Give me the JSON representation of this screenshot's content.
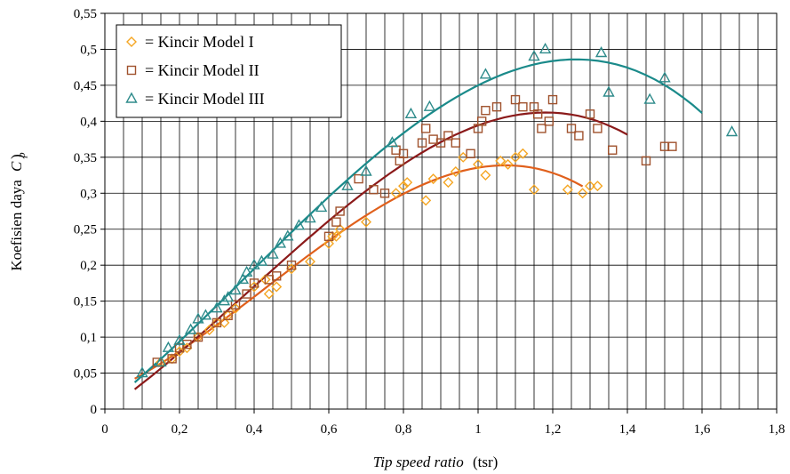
{
  "chart_data": {
    "type": "scatter",
    "title": "",
    "xlabel_italic": "Tip speed ratio",
    "xlabel_suffix": "(tsr)",
    "ylabel_prefix": "Koefisien daya",
    "ylabel_symbol": "C",
    "ylabel_sub": "p",
    "xlim": [
      0,
      1.8
    ],
    "ylim": [
      0,
      0.55
    ],
    "x_ticks": [
      "0",
      "0,2",
      "0,4",
      "0,6",
      "0,8",
      "1",
      "1,2",
      "1,4",
      "1,6",
      "1,8"
    ],
    "y_ticks": [
      "0",
      "0,05",
      "0,1",
      "0,15",
      "0,2",
      "0,25",
      "0,3",
      "0,35",
      "0,4",
      "0,45",
      "0,5",
      "0,55"
    ],
    "grid": true,
    "legend_position": "top-left",
    "series": [
      {
        "name": "= Kincir Model I",
        "marker": "diamond",
        "color": "#F5A623",
        "trend_color": "#E0601C",
        "points": [
          [
            0.15,
            0.065
          ],
          [
            0.18,
            0.07
          ],
          [
            0.2,
            0.08
          ],
          [
            0.22,
            0.085
          ],
          [
            0.25,
            0.1
          ],
          [
            0.28,
            0.11
          ],
          [
            0.3,
            0.12
          ],
          [
            0.32,
            0.12
          ],
          [
            0.33,
            0.13
          ],
          [
            0.35,
            0.14
          ],
          [
            0.4,
            0.17
          ],
          [
            0.43,
            0.18
          ],
          [
            0.44,
            0.16
          ],
          [
            0.46,
            0.17
          ],
          [
            0.5,
            0.195
          ],
          [
            0.55,
            0.205
          ],
          [
            0.6,
            0.23
          ],
          [
            0.61,
            0.24
          ],
          [
            0.62,
            0.24
          ],
          [
            0.63,
            0.25
          ],
          [
            0.7,
            0.26
          ],
          [
            0.78,
            0.3
          ],
          [
            0.8,
            0.31
          ],
          [
            0.81,
            0.315
          ],
          [
            0.86,
            0.29
          ],
          [
            0.88,
            0.32
          ],
          [
            0.92,
            0.315
          ],
          [
            0.94,
            0.33
          ],
          [
            0.96,
            0.35
          ],
          [
            1.0,
            0.34
          ],
          [
            1.02,
            0.325
          ],
          [
            1.06,
            0.345
          ],
          [
            1.08,
            0.34
          ],
          [
            1.1,
            0.35
          ],
          [
            1.12,
            0.355
          ],
          [
            1.15,
            0.305
          ],
          [
            1.24,
            0.305
          ],
          [
            1.28,
            0.3
          ],
          [
            1.3,
            0.31
          ],
          [
            1.32,
            0.31
          ]
        ],
        "trend_x": [
          0.08,
          1.28
        ]
      },
      {
        "name": "= Kincir Model II",
        "marker": "square",
        "color": "#A0522D",
        "trend_color": "#8B1A1A",
        "points": [
          [
            0.14,
            0.065
          ],
          [
            0.18,
            0.07
          ],
          [
            0.2,
            0.085
          ],
          [
            0.22,
            0.09
          ],
          [
            0.25,
            0.1
          ],
          [
            0.3,
            0.12
          ],
          [
            0.33,
            0.13
          ],
          [
            0.35,
            0.145
          ],
          [
            0.38,
            0.16
          ],
          [
            0.4,
            0.175
          ],
          [
            0.44,
            0.18
          ],
          [
            0.46,
            0.185
          ],
          [
            0.5,
            0.2
          ],
          [
            0.6,
            0.24
          ],
          [
            0.62,
            0.26
          ],
          [
            0.63,
            0.275
          ],
          [
            0.68,
            0.32
          ],
          [
            0.72,
            0.305
          ],
          [
            0.75,
            0.3
          ],
          [
            0.78,
            0.36
          ],
          [
            0.79,
            0.345
          ],
          [
            0.8,
            0.355
          ],
          [
            0.85,
            0.37
          ],
          [
            0.86,
            0.39
          ],
          [
            0.88,
            0.375
          ],
          [
            0.9,
            0.37
          ],
          [
            0.92,
            0.38
          ],
          [
            0.94,
            0.37
          ],
          [
            0.98,
            0.355
          ],
          [
            1.0,
            0.39
          ],
          [
            1.01,
            0.4
          ],
          [
            1.02,
            0.415
          ],
          [
            1.05,
            0.42
          ],
          [
            1.1,
            0.43
          ],
          [
            1.12,
            0.42
          ],
          [
            1.15,
            0.42
          ],
          [
            1.16,
            0.41
          ],
          [
            1.17,
            0.39
          ],
          [
            1.19,
            0.4
          ],
          [
            1.2,
            0.43
          ],
          [
            1.25,
            0.39
          ],
          [
            1.27,
            0.38
          ],
          [
            1.3,
            0.41
          ],
          [
            1.32,
            0.39
          ],
          [
            1.36,
            0.36
          ],
          [
            1.45,
            0.345
          ],
          [
            1.5,
            0.365
          ],
          [
            1.52,
            0.365
          ]
        ],
        "trend_x": [
          0.08,
          1.4
        ]
      },
      {
        "name": "= Kincir Model III",
        "marker": "triangle",
        "color": "#2E8B8B",
        "trend_color": "#1A8A8A",
        "points": [
          [
            0.1,
            0.05
          ],
          [
            0.15,
            0.065
          ],
          [
            0.17,
            0.085
          ],
          [
            0.2,
            0.095
          ],
          [
            0.23,
            0.11
          ],
          [
            0.25,
            0.125
          ],
          [
            0.27,
            0.13
          ],
          [
            0.3,
            0.14
          ],
          [
            0.32,
            0.15
          ],
          [
            0.33,
            0.155
          ],
          [
            0.35,
            0.165
          ],
          [
            0.37,
            0.18
          ],
          [
            0.38,
            0.19
          ],
          [
            0.4,
            0.2
          ],
          [
            0.42,
            0.205
          ],
          [
            0.45,
            0.215
          ],
          [
            0.47,
            0.23
          ],
          [
            0.49,
            0.24
          ],
          [
            0.52,
            0.255
          ],
          [
            0.55,
            0.265
          ],
          [
            0.58,
            0.28
          ],
          [
            0.65,
            0.31
          ],
          [
            0.7,
            0.33
          ],
          [
            0.77,
            0.37
          ],
          [
            0.82,
            0.41
          ],
          [
            0.87,
            0.42
          ],
          [
            1.02,
            0.465
          ],
          [
            1.15,
            0.49
          ],
          [
            1.18,
            0.5
          ],
          [
            1.33,
            0.495
          ],
          [
            1.35,
            0.44
          ],
          [
            1.46,
            0.43
          ],
          [
            1.5,
            0.46
          ],
          [
            1.68,
            0.385
          ]
        ],
        "trend_x": [
          0.08,
          1.6
        ]
      }
    ]
  }
}
